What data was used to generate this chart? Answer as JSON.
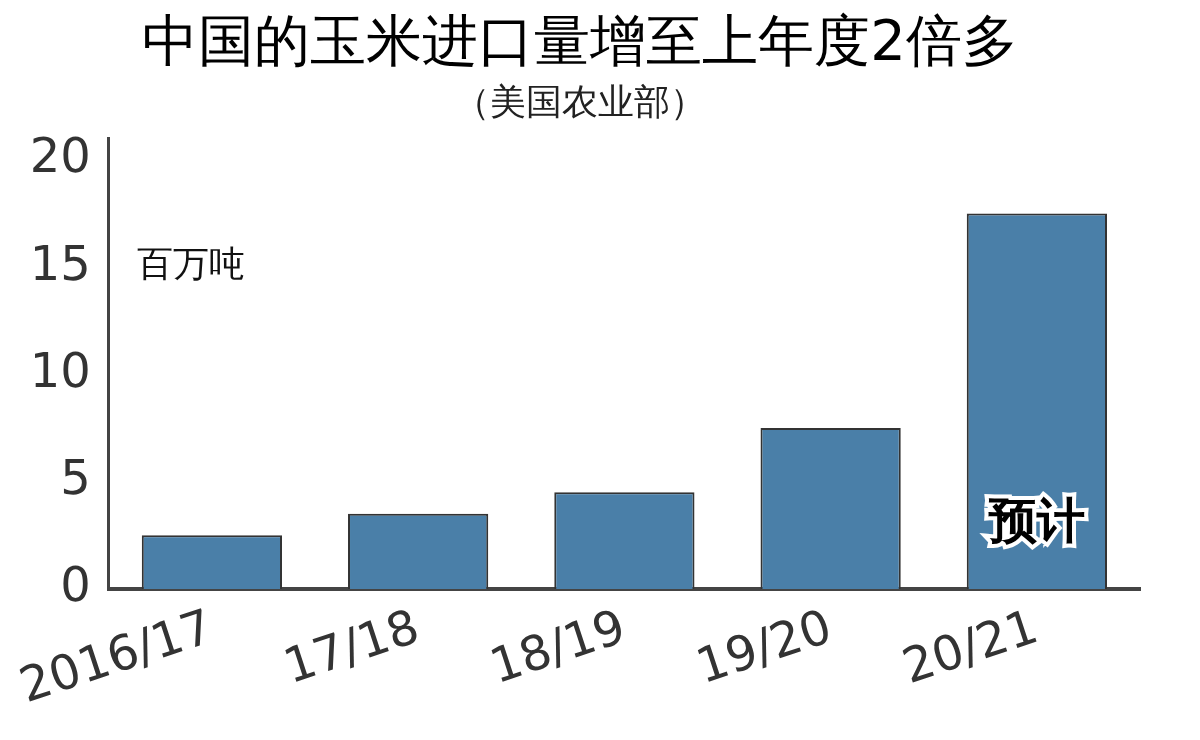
{
  "chart_data": {
    "type": "bar",
    "title": "中国的玉米进口量增至上年度2倍多",
    "subtitle": "（美国农业部）",
    "ylabel": "百万吨",
    "categories": [
      "2016/17",
      "17/18",
      "18/19",
      "19/20",
      "20/21"
    ],
    "values": [
      2.5,
      3.5,
      4.5,
      7.5,
      17.5
    ],
    "color": "#4a7fa8",
    "ylim": [
      0,
      21
    ],
    "yticks": [
      0,
      5,
      10,
      15,
      20
    ],
    "grid": false,
    "legend": false,
    "annotations": [
      {
        "text": "预计",
        "x": "20/21",
        "y": 3
      }
    ]
  }
}
